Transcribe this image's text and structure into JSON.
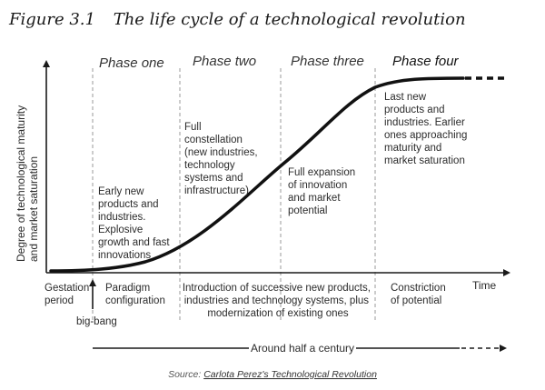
{
  "title": {
    "number": "Figure 3.1",
    "text": "The life cycle of a technological revolution"
  },
  "phases": [
    "Phase one",
    "Phase two",
    "Phase three",
    "Phase four"
  ],
  "y_axis_label": [
    "Degree of technological maturity",
    "and market saturation"
  ],
  "x_axis_label": "Time",
  "phase_notes": {
    "one": [
      "Early new",
      "products and",
      "industries.",
      "Explosive",
      "growth and fast",
      "innovations"
    ],
    "two": [
      "Full",
      "constellation",
      "(new industries,",
      "technology",
      "systems and",
      "infrastructure)"
    ],
    "three": [
      "Full expansion",
      "of innovation",
      "and market",
      "potential"
    ],
    "four": [
      "Last new",
      "products and",
      "industries. Earlier",
      "ones approaching",
      "maturity and",
      "market saturation"
    ]
  },
  "below_axis": {
    "gestation": [
      "Gestation",
      "period"
    ],
    "paradigm": [
      "Paradigm",
      "configuration"
    ],
    "introduction": [
      "Introduction of successive new products,",
      "industries and technology systems, plus",
      "modernization of existing ones"
    ],
    "constriction": [
      "Constriction",
      "of potential"
    ],
    "big_bang": "big-bang"
  },
  "time_span": "Around half a century",
  "source": {
    "prefix": "Source: ",
    "link": "Carlota Perez's Technological Revolution"
  },
  "colors": {
    "curve": "#111111",
    "axis": "#1a1a1a",
    "divider": "#9a9a9a"
  }
}
